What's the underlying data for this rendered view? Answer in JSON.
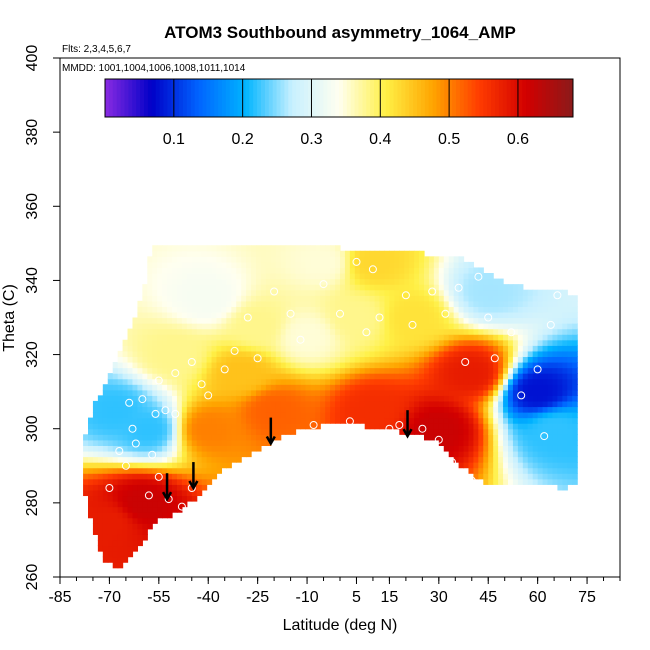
{
  "chart_data": {
    "type": "heatmap",
    "title": "ATOM3 Southbound asymmetry_1064_AMP",
    "annotations": {
      "flights": "Flts: 2,3,4,5,6,7",
      "dates": "MMDD: 1001,1004,1006,1008,1011,1014"
    },
    "xlabel": "Latitude (deg N)",
    "ylabel": "Theta (C)",
    "xlim": [
      -85,
      85
    ],
    "ylim": [
      260,
      400
    ],
    "x_ticks": [
      -85,
      -70,
      -55,
      -40,
      -25,
      -10,
      5,
      15,
      30,
      45,
      60,
      75
    ],
    "x_tick_labels": [
      "-85",
      "-70",
      "-55",
      "-40",
      "-25",
      "-10",
      "5",
      "15",
      "30",
      "45",
      "60",
      "75"
    ],
    "x_minor_step": 5,
    "y_ticks": [
      260,
      280,
      300,
      320,
      340,
      360,
      380,
      400
    ],
    "y_tick_labels": [
      "260",
      "280",
      "300",
      "320",
      "340",
      "360",
      "380",
      "400"
    ],
    "grid": false,
    "colorbar": {
      "placement": "top",
      "range": [
        0,
        0.68
      ],
      "ticks": [
        0.1,
        0.2,
        0.3,
        0.4,
        0.5,
        0.6
      ],
      "tick_labels": [
        "0.1",
        "0.2",
        "0.3",
        "0.4",
        "0.5",
        "0.6"
      ],
      "colors": [
        "#8a2be2",
        "#0000c8",
        "#0064ff",
        "#00b4ff",
        "#c8f0ff",
        "#fffff0",
        "#fff046",
        "#ffa500",
        "#ff3c00",
        "#d20000",
        "#8b1a1a"
      ]
    },
    "boundary": {
      "upper": [
        [
          -78,
          296
        ],
        [
          -75,
          305
        ],
        [
          -70,
          313
        ],
        [
          -64,
          326
        ],
        [
          -60,
          335
        ],
        [
          -57,
          349
        ],
        [
          -25,
          349
        ],
        [
          -10,
          349
        ],
        [
          0,
          348
        ],
        [
          10,
          347
        ],
        [
          20,
          347
        ],
        [
          30,
          346
        ],
        [
          37,
          345
        ],
        [
          45,
          341
        ],
        [
          52,
          338
        ],
        [
          60,
          337
        ],
        [
          68,
          337
        ],
        [
          72,
          334
        ]
      ],
      "lower": [
        [
          72,
          285
        ],
        [
          68,
          284
        ],
        [
          60,
          285
        ],
        [
          50,
          285
        ],
        [
          45,
          285
        ],
        [
          40,
          288
        ],
        [
          35,
          291
        ],
        [
          30,
          296
        ],
        [
          25,
          298
        ],
        [
          15,
          300
        ],
        [
          5,
          301
        ],
        [
          -5,
          301
        ],
        [
          -15,
          299
        ],
        [
          -25,
          294
        ],
        [
          -35,
          289
        ],
        [
          -42,
          283
        ],
        [
          -48,
          278
        ],
        [
          -52,
          276
        ],
        [
          -56,
          275
        ],
        [
          -58,
          272
        ],
        [
          -64,
          266
        ],
        [
          -67,
          262
        ],
        [
          -71,
          264
        ],
        [
          -74,
          270
        ],
        [
          -77,
          280
        ],
        [
          -78,
          290
        ]
      ]
    },
    "value_centers": [
      {
        "lat": -68,
        "theta": 305,
        "value": 0.22
      },
      {
        "lat": -58,
        "theta": 300,
        "value": 0.22
      },
      {
        "lat": -40,
        "theta": 335,
        "value": 0.33
      },
      {
        "lat": -10,
        "theta": 325,
        "value": 0.35
      },
      {
        "lat": -25,
        "theta": 328,
        "value": 0.38
      },
      {
        "lat": 5,
        "theta": 330,
        "value": 0.38
      },
      {
        "lat": 22,
        "theta": 330,
        "value": 0.42
      },
      {
        "lat": -5,
        "theta": 345,
        "value": 0.35
      },
      {
        "lat": 10,
        "theta": 345,
        "value": 0.43
      },
      {
        "lat": 45,
        "theta": 337,
        "value": 0.26
      },
      {
        "lat": 60,
        "theta": 310,
        "value": 0.08
      },
      {
        "lat": 65,
        "theta": 300,
        "value": 0.22
      },
      {
        "lat": 40,
        "theta": 315,
        "value": 0.58
      },
      {
        "lat": 30,
        "theta": 300,
        "value": 0.62
      },
      {
        "lat": 10,
        "theta": 305,
        "value": 0.56
      },
      {
        "lat": -20,
        "theta": 305,
        "value": 0.52
      },
      {
        "lat": -40,
        "theta": 300,
        "value": 0.5
      },
      {
        "lat": -60,
        "theta": 280,
        "value": 0.62
      },
      {
        "lat": -70,
        "theta": 275,
        "value": 0.58
      },
      {
        "lat": -50,
        "theta": 320,
        "value": 0.38
      },
      {
        "lat": -30,
        "theta": 315,
        "value": 0.45
      }
    ],
    "points": [
      [
        -70,
        284
      ],
      [
        -67,
        294
      ],
      [
        -64,
        307
      ],
      [
        -63,
        300
      ],
      [
        -60,
        308
      ],
      [
        -57,
        293
      ],
      [
        -56,
        304
      ],
      [
        -55,
        313
      ],
      [
        -53,
        305
      ],
      [
        -50,
        304
      ],
      [
        -45,
        318
      ],
      [
        -40,
        309
      ],
      [
        -35,
        316
      ],
      [
        -32,
        321
      ],
      [
        -28,
        330
      ],
      [
        -25,
        319
      ],
      [
        -20,
        337
      ],
      [
        -15,
        331
      ],
      [
        -12,
        324
      ],
      [
        -8,
        301
      ],
      [
        -5,
        339
      ],
      [
        0,
        331
      ],
      [
        3,
        302
      ],
      [
        5,
        345
      ],
      [
        8,
        326
      ],
      [
        10,
        343
      ],
      [
        12,
        330
      ],
      [
        15,
        300
      ],
      [
        18,
        301
      ],
      [
        20,
        336
      ],
      [
        22,
        328
      ],
      [
        25,
        300
      ],
      [
        28,
        337
      ],
      [
        30,
        297
      ],
      [
        32,
        331
      ],
      [
        34,
        291
      ],
      [
        36,
        338
      ],
      [
        38,
        318
      ],
      [
        40,
        286
      ],
      [
        42,
        341
      ],
      [
        45,
        330
      ],
      [
        47,
        319
      ],
      [
        50,
        283
      ],
      [
        52,
        326
      ],
      [
        55,
        309
      ],
      [
        58,
        345
      ],
      [
        60,
        316
      ],
      [
        62,
        298
      ],
      [
        64,
        328
      ],
      [
        66,
        336
      ],
      [
        -58,
        282
      ],
      [
        -55,
        287
      ],
      [
        -52,
        281
      ],
      [
        -48,
        279
      ],
      [
        -45,
        284
      ],
      [
        -62,
        296
      ],
      [
        -65,
        290
      ],
      [
        -50,
        315
      ],
      [
        -42,
        312
      ]
    ],
    "arrows": [
      {
        "lat": -52.5,
        "theta": 287
      },
      {
        "lat": -44.5,
        "theta": 290
      },
      {
        "lat": -21,
        "theta": 302
      },
      {
        "lat": 20.5,
        "theta": 304
      }
    ]
  }
}
